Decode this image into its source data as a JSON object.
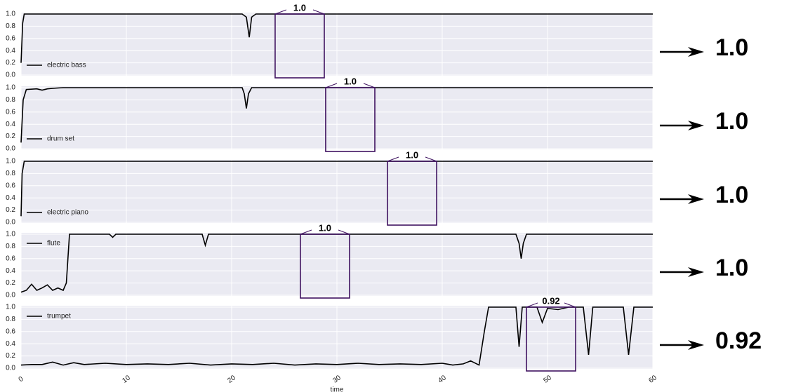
{
  "chart_data": [
    {
      "type": "line",
      "legend": "lower left",
      "x": [
        0,
        0.15,
        0.3,
        21,
        21.4,
        21.67,
        21.9,
        22.3,
        60
      ],
      "series": [
        {
          "name": "electric bass",
          "color": "#000000",
          "values": [
            0.2,
            0.85,
            1,
            1,
            0.95,
            0.62,
            0.95,
            1,
            1
          ]
        }
      ],
      "xlim": [
        0,
        60
      ],
      "ylim": [
        0,
        1
      ],
      "yticks": [
        {
          "value": 0,
          "label": "0.0"
        },
        0.2,
        0.4,
        0.6,
        0.8,
        {
          "value": 1,
          "label": "1.0"
        }
      ],
      "highlight": {
        "start": 24.13,
        "end": 28.8,
        "value": 1,
        "label": "1.0"
      }
    },
    {
      "type": "line",
      "legend": "lower left",
      "x": [
        0,
        0.2,
        0.5,
        1.5,
        2,
        2.5,
        3,
        4,
        8,
        21,
        21.2,
        21.4,
        21.6,
        21.9,
        60
      ],
      "series": [
        {
          "name": "drum set",
          "color": "#000000",
          "values": [
            0.1,
            0.8,
            0.97,
            0.98,
            0.96,
            0.98,
            0.99,
            1,
            1,
            1,
            0.9,
            0.66,
            0.9,
            1,
            1
          ]
        }
      ],
      "xlim": [
        0,
        60
      ],
      "ylim": [
        0,
        1
      ],
      "yticks": [
        {
          "value": 0,
          "label": "0.0"
        },
        0.2,
        0.4,
        0.6,
        0.8,
        {
          "value": 1,
          "label": "1.0"
        }
      ],
      "highlight": {
        "start": 28.93,
        "end": 33.6,
        "value": 1,
        "label": "1.0"
      }
    },
    {
      "type": "line",
      "legend": "lower left",
      "x": [
        0,
        0.1,
        0.3,
        60
      ],
      "series": [
        {
          "name": "electric piano",
          "color": "#000000",
          "values": [
            0.1,
            0.8,
            1,
            1
          ]
        }
      ],
      "xlim": [
        0,
        60
      ],
      "ylim": [
        0,
        1
      ],
      "yticks": [
        {
          "value": 0,
          "label": "0.0"
        },
        0.2,
        0.4,
        0.6,
        0.8,
        {
          "value": 1,
          "label": "1.0"
        }
      ],
      "highlight": {
        "start": 34.8,
        "end": 39.47,
        "value": 1,
        "label": "1.0"
      }
    },
    {
      "type": "line",
      "legend": "upper left",
      "x": [
        0,
        0.5,
        1,
        1.5,
        2,
        2.5,
        3,
        3.5,
        4,
        4.3,
        4.6,
        8.4,
        8.7,
        9,
        17.2,
        17.5,
        17.8,
        47,
        47.3,
        47.5,
        47.7,
        48,
        60
      ],
      "series": [
        {
          "name": "flute",
          "color": "#000000",
          "values": [
            0.05,
            0.08,
            0.18,
            0.08,
            0.12,
            0.17,
            0.08,
            0.12,
            0.08,
            0.2,
            1,
            1,
            0.95,
            1,
            1,
            0.82,
            1,
            1,
            0.85,
            0.6,
            0.85,
            1,
            1
          ]
        }
      ],
      "xlim": [
        0,
        60
      ],
      "ylim": [
        0,
        1
      ],
      "yticks": [
        {
          "value": 0,
          "label": "0.0"
        },
        0.2,
        0.4,
        0.6,
        0.8,
        {
          "value": 1,
          "label": "1.0"
        }
      ],
      "highlight": {
        "start": 26.53,
        "end": 31.2,
        "value": 1,
        "label": "1.0"
      }
    },
    {
      "type": "line",
      "legend": "upper left",
      "x": [
        0,
        1,
        2,
        3,
        4,
        5,
        6,
        8,
        10,
        12,
        14,
        16,
        18,
        20,
        22,
        24,
        26,
        28,
        30,
        32,
        34,
        36,
        38,
        40,
        41,
        42,
        42.7,
        43.5,
        44,
        44.4,
        47,
        47.3,
        47.6,
        48,
        49,
        49.5,
        50,
        51,
        52,
        53.4,
        53.9,
        54.3,
        57.2,
        57.7,
        58.2,
        60
      ],
      "series": [
        {
          "name": "trumpet",
          "color": "#000000",
          "values": [
            0.05,
            0.06,
            0.06,
            0.1,
            0.05,
            0.09,
            0.06,
            0.08,
            0.06,
            0.07,
            0.06,
            0.08,
            0.05,
            0.07,
            0.06,
            0.08,
            0.05,
            0.07,
            0.06,
            0.08,
            0.06,
            0.07,
            0.06,
            0.08,
            0.05,
            0.07,
            0.12,
            0.05,
            0.6,
            1,
            1,
            0.35,
            1,
            1,
            1,
            0.75,
            0.98,
            0.96,
            1,
            1,
            0.22,
            1,
            1,
            0.22,
            1,
            1
          ]
        }
      ],
      "xlim": [
        0,
        60
      ],
      "ylim": [
        0,
        1
      ],
      "yticks": [
        {
          "value": 0,
          "label": "0.0"
        },
        0.2,
        0.4,
        0.6,
        0.8,
        {
          "value": 1,
          "label": "1.0"
        }
      ],
      "xticks": [
        0,
        10,
        20,
        30,
        40,
        50,
        60
      ],
      "x_label": "time",
      "highlight": {
        "start": 48,
        "end": 52.67,
        "value": 0.92,
        "label": "0.92"
      }
    }
  ]
}
